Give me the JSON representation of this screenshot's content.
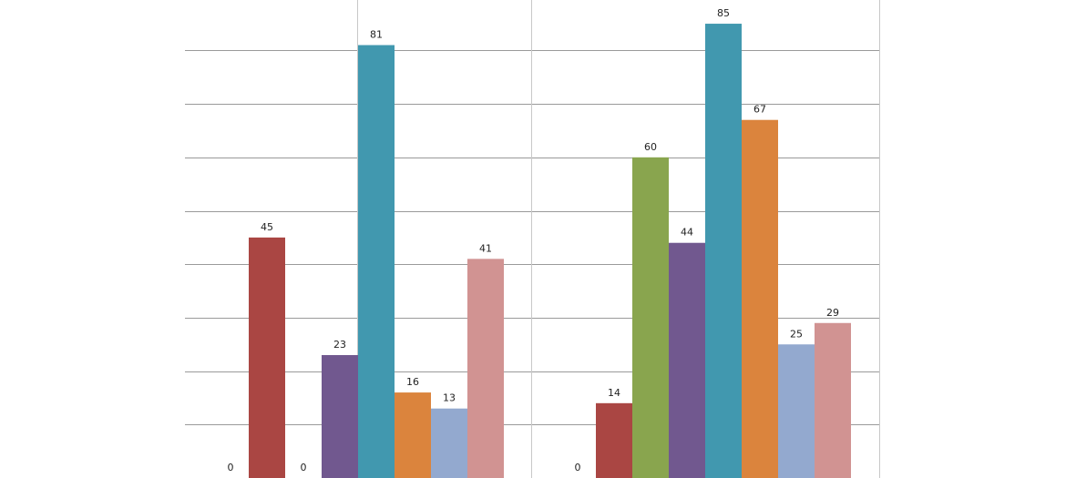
{
  "chart_data": {
    "type": "bar",
    "title": "",
    "xlabel": "",
    "ylabel": "",
    "ylim": [
      0,
      90
    ],
    "grid": true,
    "legend": "none",
    "groups": [
      {
        "bars": [
          {
            "value": 0,
            "label": "0",
            "color": "#4b6fa8"
          },
          {
            "value": 45,
            "label": "45",
            "color": "#aa4643"
          },
          {
            "value": 0,
            "label": "0",
            "color": "#89a54e"
          },
          {
            "value": 23,
            "label": "23",
            "color": "#71588f"
          },
          {
            "value": 81,
            "label": "81",
            "color": "#4198af"
          },
          {
            "value": 16,
            "label": "16",
            "color": "#db843d"
          },
          {
            "value": 13,
            "label": "13",
            "color": "#93a9cf"
          },
          {
            "value": 41,
            "label": "41",
            "color": "#d19392"
          }
        ]
      },
      {
        "bars": [
          {
            "value": 0,
            "label": "0",
            "color": "#4b6fa8"
          },
          {
            "value": 14,
            "label": "14",
            "color": "#aa4643"
          },
          {
            "value": 60,
            "label": "60",
            "color": "#89a54e"
          },
          {
            "value": 44,
            "label": "44",
            "color": "#71588f"
          },
          {
            "value": 85,
            "label": "85",
            "color": "#4198af"
          },
          {
            "value": 67,
            "label": "67",
            "color": "#db843d"
          },
          {
            "value": 25,
            "label": "25",
            "color": "#93a9cf"
          },
          {
            "value": 29,
            "label": "29",
            "color": "#d19392"
          }
        ]
      }
    ]
  }
}
